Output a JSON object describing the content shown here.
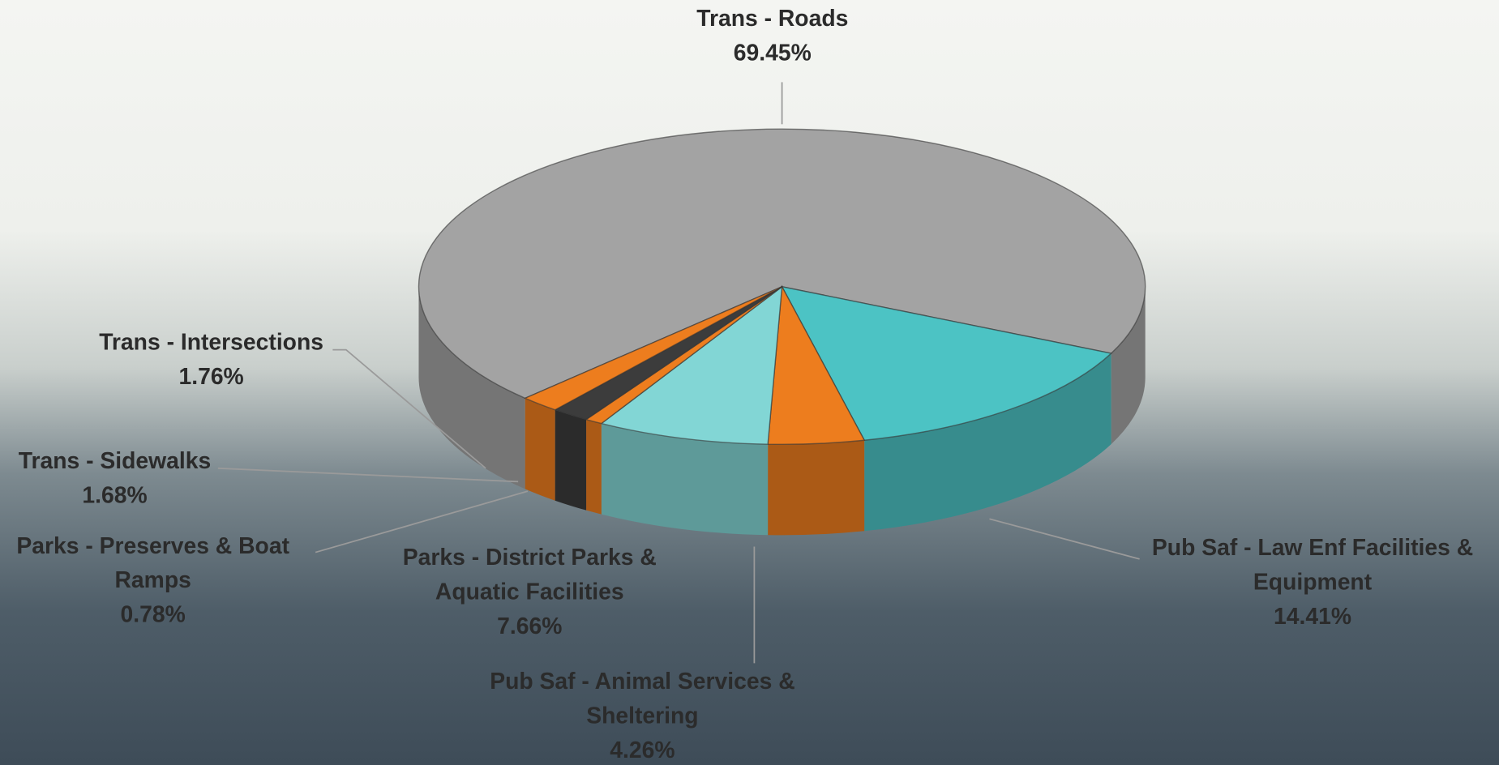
{
  "chart_data": {
    "type": "pie3d",
    "categories": [
      "Trans - Roads",
      "Pub Saf - Law Enf Facilities & Equipment",
      "Pub Saf - Animal Services & Sheltering",
      "Parks - District Parks & Aquatic Facilities",
      "Parks - Preserves & Boat Ramps",
      "Trans - Sidewalks",
      "Trans - Intersections"
    ],
    "values": [
      69.45,
      14.41,
      4.26,
      7.66,
      0.78,
      1.68,
      1.76
    ],
    "value_labels": [
      "69.45%",
      "14.41%",
      "4.26%",
      "7.66%",
      "0.78%",
      "1.68%",
      "1.76%"
    ],
    "colors": [
      "#a3a3a3",
      "#4cc3c4",
      "#ed7d1e",
      "#82d6d5",
      "#ed7d1e",
      "#3c3c3c",
      "#ed7d1e"
    ]
  }
}
